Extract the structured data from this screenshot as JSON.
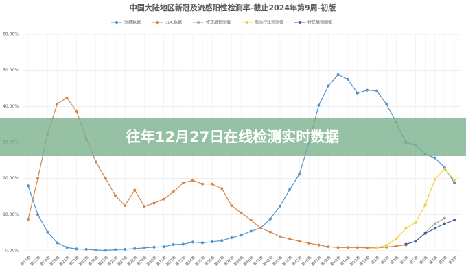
{
  "chart_data": {
    "type": "line",
    "title": "中国大陆地区新冠及流感阳性检测率-截止2024年第9周-初版",
    "banner": "往年12月27日在线检测实时数据",
    "categories": [
      "第17周",
      "第18周",
      "第19周",
      "第20周",
      "第21周",
      "第22周",
      "第23周",
      "第24周",
      "第25周",
      "第26周",
      "第27周",
      "第28周",
      "第29周",
      "第30周",
      "第31周",
      "第32周",
      "第33周",
      "第34周",
      "第35周",
      "第36周",
      "第37周",
      "第38周",
      "第39周",
      "第40周",
      "第41周",
      "第42周",
      "第43周",
      "第44周",
      "第45周",
      "第46周",
      "第47周",
      "第48周",
      "第49周",
      "第50周",
      "第51周",
      "第52周",
      "第1周",
      "第2周",
      "第3周",
      "第4周",
      "第5周",
      "第6周",
      "第7周",
      "第8周",
      "第9周"
    ],
    "ylim": [
      0,
      60
    ],
    "yticks": [
      {
        "value": 0,
        "label": "0.00%"
      },
      {
        "value": 10,
        "label": "10.00%"
      },
      {
        "value": 20,
        "label": "20.00%"
      },
      {
        "value": 30,
        "label": "30.00%"
      },
      {
        "value": 40,
        "label": "40.00%"
      },
      {
        "value": 50,
        "label": "50.00%"
      },
      {
        "value": 60,
        "label": "60.00%"
      }
    ],
    "grid": true,
    "legend": "top",
    "series": [
      {
        "name": "流感数据",
        "color": "#4f93cf",
        "values": [
          18,
          10,
          5.2,
          2.2,
          0.9,
          0.5,
          0.4,
          0.2,
          0.1,
          0.3,
          0.4,
          0.6,
          0.8,
          1.0,
          1.1,
          1.7,
          1.8,
          2.4,
          2.2,
          2.5,
          2.8,
          3.6,
          4.3,
          5.4,
          6.3,
          8.8,
          12.4,
          16.9,
          21.2,
          30,
          40.3,
          45.7,
          48.8,
          47.5,
          43.7,
          44.5,
          44.3,
          40.6,
          35.6,
          30,
          29.3,
          26.7,
          25.7,
          23,
          18.8
        ]
      },
      {
        "name": "CDC数据",
        "color": "#d4854a",
        "values": [
          8.7,
          20,
          32.3,
          40.7,
          42.4,
          38.6,
          31,
          24.6,
          20,
          15.3,
          12.5,
          16.8,
          12.3,
          13.2,
          14.3,
          16.3,
          18.8,
          19.5,
          18.5,
          18.5,
          17.2,
          12.5,
          10.5,
          8.5,
          6.3,
          5.2,
          3.9,
          3.3,
          2.6,
          2.1,
          1.6,
          1.1,
          0.9,
          0.9,
          0.9,
          0.8,
          0.8,
          1.0,
          1.3,
          1.6,
          null,
          null,
          null,
          null,
          null
        ]
      },
      {
        "name": "修正后预测值",
        "color": "#a5a5a5",
        "values": [
          null,
          null,
          null,
          null,
          null,
          null,
          null,
          null,
          null,
          null,
          null,
          null,
          null,
          null,
          null,
          null,
          null,
          null,
          null,
          null,
          null,
          null,
          null,
          null,
          null,
          null,
          null,
          null,
          null,
          null,
          null,
          null,
          null,
          null,
          null,
          null,
          null,
          null,
          null,
          1.8,
          2.6,
          5,
          7.5,
          9.0,
          null
        ]
      },
      {
        "name": "高流行比预测值",
        "color": "#f2d13c",
        "values": [
          null,
          null,
          null,
          null,
          null,
          null,
          null,
          null,
          null,
          null,
          null,
          null,
          null,
          null,
          null,
          null,
          null,
          null,
          null,
          null,
          null,
          null,
          null,
          null,
          null,
          null,
          null,
          null,
          null,
          null,
          null,
          null,
          null,
          null,
          null,
          null,
          0.8,
          1.5,
          3.3,
          6.2,
          7.8,
          12.7,
          19.8,
          22.7,
          19.5
        ]
      },
      {
        "name": "修正后预测值",
        "color": "#3e5f9e",
        "values": [
          null,
          null,
          null,
          null,
          null,
          null,
          null,
          null,
          null,
          null,
          null,
          null,
          null,
          null,
          null,
          null,
          null,
          null,
          null,
          null,
          null,
          null,
          null,
          null,
          null,
          null,
          null,
          null,
          null,
          null,
          null,
          null,
          null,
          null,
          null,
          null,
          null,
          null,
          null,
          1.8,
          2.6,
          4.8,
          6.2,
          7.5,
          8.5
        ]
      }
    ]
  }
}
